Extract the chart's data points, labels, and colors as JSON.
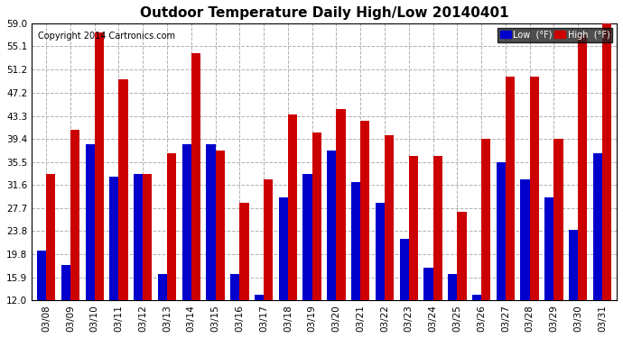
{
  "title": "Outdoor Temperature Daily High/Low 20140401",
  "copyright": "Copyright 2014 Cartronics.com",
  "legend_low": "Low  (°F)",
  "legend_high": "High  (°F)",
  "dates": [
    "03/08",
    "03/09",
    "03/10",
    "03/11",
    "03/12",
    "03/13",
    "03/14",
    "03/15",
    "03/16",
    "03/17",
    "03/18",
    "03/19",
    "03/20",
    "03/21",
    "03/22",
    "03/23",
    "03/24",
    "03/25",
    "03/26",
    "03/27",
    "03/28",
    "03/29",
    "03/30",
    "03/31"
  ],
  "high": [
    33.5,
    41.0,
    57.5,
    49.5,
    33.5,
    37.0,
    54.0,
    37.5,
    28.5,
    32.5,
    43.5,
    40.5,
    44.5,
    42.5,
    40.0,
    36.5,
    36.5,
    27.0,
    39.4,
    50.0,
    50.0,
    39.4,
    57.0,
    59.0
  ],
  "low": [
    20.5,
    18.0,
    38.5,
    33.0,
    33.5,
    16.5,
    38.5,
    38.5,
    16.5,
    13.0,
    29.5,
    33.5,
    37.5,
    32.0,
    28.5,
    22.5,
    17.5,
    16.5,
    13.0,
    35.5,
    32.5,
    29.5,
    24.0,
    37.0
  ],
  "ylim_min": 12.0,
  "ylim_max": 59.0,
  "yticks": [
    12.0,
    15.9,
    19.8,
    23.8,
    27.7,
    31.6,
    35.5,
    39.4,
    43.3,
    47.2,
    51.2,
    55.1,
    59.0
  ],
  "bar_width": 0.38,
  "color_low": "#0000cc",
  "color_high": "#cc0000",
  "bg_color": "#ffffff",
  "grid_color": "#b0b0b0",
  "title_fontsize": 11,
  "tick_fontsize": 7.5,
  "copyright_fontsize": 7
}
